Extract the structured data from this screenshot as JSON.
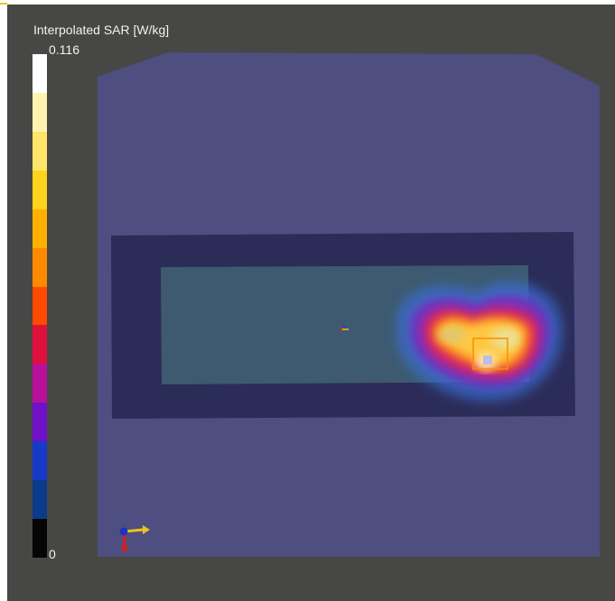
{
  "legend": {
    "title": "Interpolated SAR [W/kg]",
    "max_label": "0.116",
    "min_label": "0",
    "segments": [
      "#ffffff",
      "#fff3b0",
      "#ffe46a",
      "#ffd21e",
      "#ffb000",
      "#ff8a00",
      "#ff4a00",
      "#e0103c",
      "#b8109a",
      "#7010c8",
      "#1838c8",
      "#0c3a8a",
      "#050505"
    ]
  },
  "scene": {
    "background_color": "#474745",
    "phantom_color": "#4e4e80",
    "device_outer_color": "#2c2c58",
    "device_inner_color": "#3d5a70",
    "highlight_color": "#ff8c00",
    "x_axis_color": "#f0c020",
    "y_axis_color": "#d02020",
    "z_axis_color": "#2030c0"
  }
}
